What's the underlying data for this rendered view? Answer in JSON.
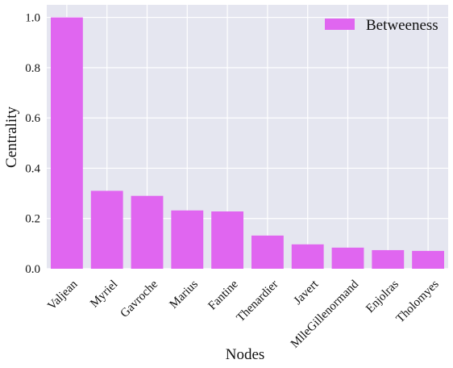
{
  "chart_data": {
    "type": "bar",
    "categories": [
      "Valjean",
      "Myriel",
      "Gavroche",
      "Marius",
      "Fantine",
      "Thenardier",
      "Javert",
      "MlleGillenormand",
      "Enjolras",
      "Tholomyes"
    ],
    "series": [
      {
        "name": "Betweeness",
        "values": [
          1.0,
          0.31,
          0.29,
          0.232,
          0.228,
          0.132,
          0.097,
          0.084,
          0.074,
          0.071
        ]
      }
    ],
    "xlabel": "Nodes",
    "ylabel": "Centrality",
    "ylim": [
      0,
      1.05
    ],
    "yticks": [
      "0.0",
      "0.2",
      "0.4",
      "0.6",
      "0.8",
      "1.0"
    ],
    "ytick_values": [
      0,
      0.2,
      0.4,
      0.6,
      0.8,
      1.0
    ],
    "grid": true,
    "legend_position": "top-right",
    "colors": {
      "bar": "#e066f0",
      "plot_background": "#e5e6f0",
      "grid": "#ffffff"
    }
  }
}
